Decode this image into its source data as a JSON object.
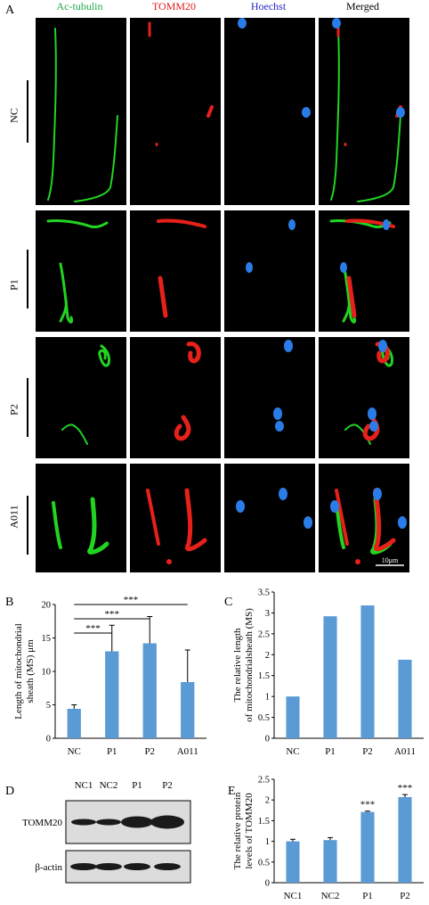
{
  "panel_A": {
    "label": "A",
    "columns": [
      {
        "name": "Ac-tubulin",
        "color": "#1fa84a"
      },
      {
        "name": "TOMM20",
        "color": "#e01b1b"
      },
      {
        "name": "Hoechst",
        "color": "#2323c8"
      },
      {
        "name": "Merged",
        "color": "#000000"
      }
    ],
    "rows": [
      "NC",
      "P1",
      "P2",
      "A011"
    ],
    "scale_bar": "10μm"
  },
  "panel_B": {
    "label": "B"
  },
  "panel_C": {
    "label": "C"
  },
  "panel_D": {
    "label": "D",
    "lanes": [
      "NC1",
      "NC2",
      "P1",
      "P2"
    ],
    "bands": [
      "TOMM20",
      "β-actin"
    ]
  },
  "panel_E": {
    "label": "E"
  },
  "chart_data": [
    {
      "id": "B",
      "type": "bar",
      "ylabel": "Length of mitochondrial sheath (MS) μm",
      "categories": [
        "NC",
        "P1",
        "P2",
        "A011"
      ],
      "values": [
        4.4,
        13.0,
        14.2,
        8.4
      ],
      "errors": [
        0.6,
        3.9,
        4.0,
        4.8
      ],
      "ylim": [
        0,
        20
      ],
      "yticks": [
        0,
        5,
        10,
        15,
        20
      ],
      "significance": [
        {
          "pair": [
            "NC",
            "P1"
          ],
          "label": "***"
        },
        {
          "pair": [
            "NC",
            "P2"
          ],
          "label": "***"
        },
        {
          "pair": [
            "NC",
            "A011"
          ],
          "label": "***"
        }
      ],
      "color": "#5b9bd5"
    },
    {
      "id": "C",
      "type": "bar",
      "ylabel": "The relative length of mitochondrialsheath (MS)",
      "categories": [
        "NC",
        "P1",
        "P2",
        "A011"
      ],
      "values": [
        1.0,
        2.92,
        3.18,
        1.88
      ],
      "ylim": [
        0,
        3.5
      ],
      "yticks": [
        0,
        0.5,
        1,
        1.5,
        2,
        2.5,
        3,
        3.5
      ],
      "color": "#5b9bd5"
    },
    {
      "id": "E",
      "type": "bar",
      "ylabel": "The relative protein levels of TOMM20",
      "categories": [
        "NC1",
        "NC2",
        "P1",
        "P2"
      ],
      "values": [
        1.0,
        1.03,
        1.71,
        2.07
      ],
      "errors": [
        0.05,
        0.06,
        0.02,
        0.06
      ],
      "ylim": [
        0,
        2.5
      ],
      "yticks": [
        0,
        0.5,
        1,
        1.5,
        2,
        2.5
      ],
      "annotations": [
        "",
        "",
        "***",
        "***"
      ],
      "color": "#5b9bd5"
    }
  ]
}
